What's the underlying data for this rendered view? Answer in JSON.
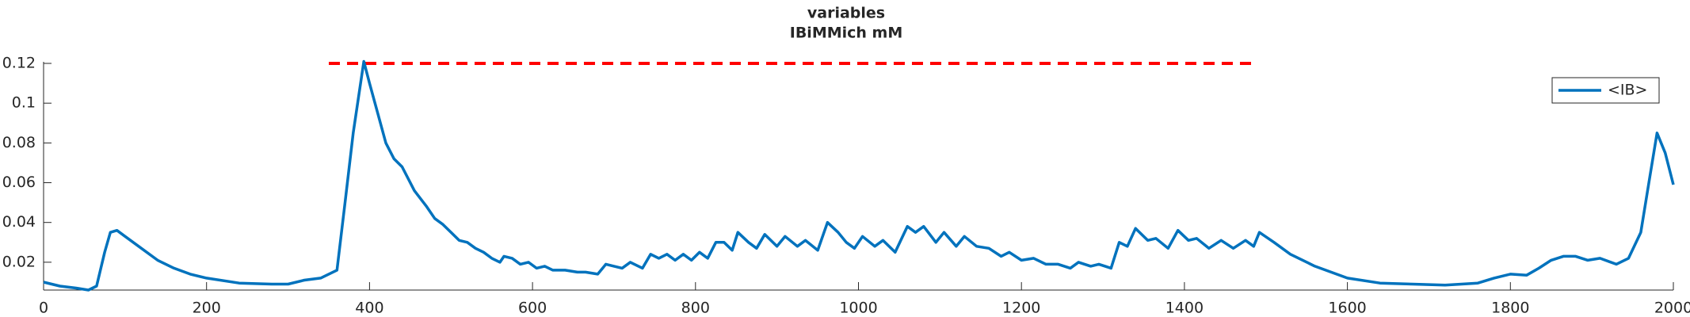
{
  "chart_data": {
    "type": "line",
    "title": "variables",
    "subtitle": "IBiMMich mM",
    "x": [
      0,
      20,
      40,
      55,
      65,
      75,
      82,
      90,
      100,
      120,
      140,
      160,
      180,
      200,
      240,
      280,
      300,
      320,
      340,
      360,
      370,
      380,
      393,
      400,
      410,
      420,
      430,
      440,
      455,
      470,
      480,
      490,
      500,
      510,
      520,
      530,
      540,
      550,
      560,
      565,
      575,
      585,
      595,
      605,
      615,
      625,
      640,
      655,
      665,
      680,
      690,
      700,
      710,
      720,
      735,
      745,
      755,
      765,
      775,
      785,
      795,
      805,
      815,
      825,
      835,
      845,
      852,
      865,
      875,
      885,
      900,
      910,
      925,
      935,
      950,
      962,
      975,
      985,
      995,
      1005,
      1020,
      1030,
      1045,
      1060,
      1070,
      1080,
      1095,
      1105,
      1120,
      1130,
      1145,
      1160,
      1175,
      1185,
      1200,
      1215,
      1230,
      1245,
      1260,
      1270,
      1285,
      1295,
      1310,
      1320,
      1330,
      1340,
      1355,
      1365,
      1380,
      1392,
      1405,
      1415,
      1430,
      1445,
      1460,
      1475,
      1485,
      1492,
      1510,
      1530,
      1560,
      1600,
      1640,
      1680,
      1720,
      1760,
      1780,
      1800,
      1820,
      1835,
      1850,
      1865,
      1880,
      1895,
      1910,
      1930,
      1945,
      1960,
      1970,
      1980,
      1990,
      2000
    ],
    "series": [
      {
        "name": "<IB>",
        "color": "#0072bd",
        "values": [
          0.01,
          0.008,
          0.007,
          0.006,
          0.008,
          0.025,
          0.035,
          0.036,
          0.033,
          0.027,
          0.021,
          0.017,
          0.014,
          0.012,
          0.0095,
          0.009,
          0.009,
          0.011,
          0.012,
          0.016,
          0.05,
          0.085,
          0.121,
          0.11,
          0.095,
          0.08,
          0.072,
          0.068,
          0.056,
          0.048,
          0.042,
          0.039,
          0.035,
          0.031,
          0.03,
          0.027,
          0.025,
          0.022,
          0.02,
          0.023,
          0.022,
          0.019,
          0.02,
          0.017,
          0.018,
          0.016,
          0.016,
          0.015,
          0.015,
          0.014,
          0.019,
          0.018,
          0.017,
          0.02,
          0.017,
          0.024,
          0.022,
          0.024,
          0.021,
          0.024,
          0.021,
          0.025,
          0.022,
          0.03,
          0.03,
          0.026,
          0.035,
          0.03,
          0.027,
          0.034,
          0.028,
          0.033,
          0.028,
          0.031,
          0.026,
          0.04,
          0.035,
          0.03,
          0.027,
          0.033,
          0.028,
          0.031,
          0.025,
          0.038,
          0.035,
          0.038,
          0.03,
          0.035,
          0.028,
          0.033,
          0.028,
          0.027,
          0.023,
          0.025,
          0.021,
          0.022,
          0.019,
          0.019,
          0.017,
          0.02,
          0.018,
          0.019,
          0.017,
          0.03,
          0.028,
          0.037,
          0.031,
          0.032,
          0.027,
          0.036,
          0.031,
          0.032,
          0.027,
          0.031,
          0.027,
          0.031,
          0.028,
          0.035,
          0.03,
          0.024,
          0.018,
          0.012,
          0.0095,
          0.009,
          0.0085,
          0.0095,
          0.012,
          0.014,
          0.0135,
          0.017,
          0.021,
          0.023,
          0.023,
          0.021,
          0.022,
          0.019,
          0.022,
          0.035,
          0.06,
          0.085,
          0.075,
          0.059
        ]
      }
    ],
    "hline": {
      "y": 0.12,
      "x": [
        350,
        1490
      ],
      "color": "#ff0000"
    },
    "xlim": [
      0,
      2000
    ],
    "xticks": [
      0,
      200,
      400,
      600,
      800,
      1000,
      1200,
      1400,
      1600,
      1800,
      2000
    ],
    "ylim": [
      0.006,
      0.12
    ],
    "yticks": [
      0.02,
      0.04,
      0.06,
      0.08,
      0.1,
      0.12
    ],
    "legend": "northeast",
    "grid": false
  }
}
